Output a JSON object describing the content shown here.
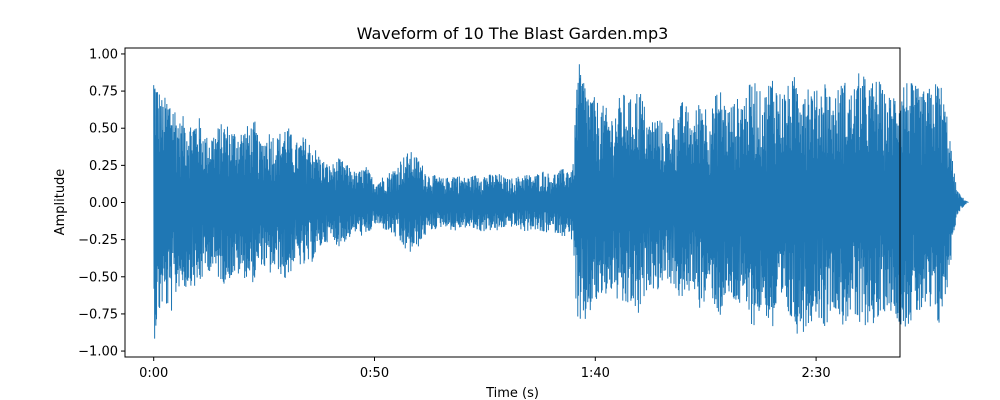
{
  "chart_data": {
    "type": "line",
    "title": "Waveform of 10 The Blast Garden.mp3",
    "xlabel": "Time (s)",
    "ylabel": "Amplitude",
    "xlim": [
      -6.5,
      169
    ],
    "ylim": [
      -1.04,
      1.04
    ],
    "xticks": [
      {
        "value": 0,
        "label": "0:00"
      },
      {
        "value": 50,
        "label": "0:50"
      },
      {
        "value": 100,
        "label": "1:40"
      },
      {
        "value": 150,
        "label": "2:30"
      }
    ],
    "yticks": [
      {
        "value": 1.0,
        "label": "1.00"
      },
      {
        "value": 0.75,
        "label": "0.75"
      },
      {
        "value": 0.5,
        "label": "0.50"
      },
      {
        "value": 0.25,
        "label": "0.25"
      },
      {
        "value": 0.0,
        "label": "0.00"
      },
      {
        "value": -0.25,
        "label": "−0.25"
      },
      {
        "value": -0.5,
        "label": "−0.50"
      },
      {
        "value": -0.75,
        "label": "−0.75"
      },
      {
        "value": -1.0,
        "label": "−1.00"
      }
    ],
    "grid": false,
    "series": [
      {
        "color": "#1f77b4",
        "envelope_upper": [
          [
            0,
            0.95
          ],
          [
            1,
            0.8
          ],
          [
            2,
            0.7
          ],
          [
            4,
            0.75
          ],
          [
            6,
            0.55
          ],
          [
            7,
            0.6
          ],
          [
            8,
            0.55
          ],
          [
            10,
            0.6
          ],
          [
            12,
            0.45
          ],
          [
            14,
            0.5
          ],
          [
            16,
            0.55
          ],
          [
            18,
            0.5
          ],
          [
            20,
            0.5
          ],
          [
            23,
            0.55
          ],
          [
            24,
            0.4
          ],
          [
            26,
            0.5
          ],
          [
            28,
            0.45
          ],
          [
            30,
            0.55
          ],
          [
            32,
            0.4
          ],
          [
            34,
            0.45
          ],
          [
            36,
            0.4
          ],
          [
            38,
            0.3
          ],
          [
            40,
            0.25
          ],
          [
            42,
            0.3
          ],
          [
            44,
            0.25
          ],
          [
            46,
            0.2
          ],
          [
            48,
            0.25
          ],
          [
            50,
            0.15
          ],
          [
            52,
            0.18
          ],
          [
            54,
            0.22
          ],
          [
            55,
            0.25
          ],
          [
            56,
            0.3
          ],
          [
            58,
            0.35
          ],
          [
            60,
            0.3
          ],
          [
            62,
            0.2
          ],
          [
            64,
            0.18
          ],
          [
            66,
            0.16
          ],
          [
            68,
            0.2
          ],
          [
            70,
            0.17
          ],
          [
            72,
            0.18
          ],
          [
            74,
            0.2
          ],
          [
            76,
            0.19
          ],
          [
            78,
            0.2
          ],
          [
            80,
            0.16
          ],
          [
            82,
            0.17
          ],
          [
            84,
            0.2
          ],
          [
            86,
            0.18
          ],
          [
            88,
            0.22
          ],
          [
            90,
            0.19
          ],
          [
            92,
            0.22
          ],
          [
            94,
            0.24
          ],
          [
            95,
            0.26
          ],
          [
            96,
            0.95
          ],
          [
            97,
            0.9
          ],
          [
            98,
            0.8
          ],
          [
            100,
            0.7
          ],
          [
            102,
            0.65
          ],
          [
            104,
            0.6
          ],
          [
            106,
            0.75
          ],
          [
            108,
            0.7
          ],
          [
            110,
            0.8
          ],
          [
            112,
            0.55
          ],
          [
            114,
            0.6
          ],
          [
            116,
            0.5
          ],
          [
            118,
            0.6
          ],
          [
            120,
            0.7
          ],
          [
            122,
            0.55
          ],
          [
            124,
            0.75
          ],
          [
            126,
            0.6
          ],
          [
            128,
            0.8
          ],
          [
            130,
            0.65
          ],
          [
            132,
            0.7
          ],
          [
            134,
            0.75
          ],
          [
            136,
            0.85
          ],
          [
            138,
            0.7
          ],
          [
            140,
            0.9
          ],
          [
            142,
            0.75
          ],
          [
            144,
            0.8
          ],
          [
            146,
            0.9
          ],
          [
            148,
            0.85
          ],
          [
            150,
            0.75
          ],
          [
            152,
            0.85
          ],
          [
            154,
            0.7
          ],
          [
            156,
            0.85
          ],
          [
            158,
            0.75
          ],
          [
            160,
            0.9
          ],
          [
            162,
            0.8
          ],
          [
            164,
            0.85
          ],
          [
            166,
            0.7
          ],
          [
            168,
            0.78
          ],
          [
            170,
            0.85
          ],
          [
            172,
            0.8
          ],
          [
            174,
            0.75
          ],
          [
            176,
            0.78
          ],
          [
            178,
            0.85
          ],
          [
            180,
            0.55
          ],
          [
            181,
            0.25
          ],
          [
            182,
            0.08
          ],
          [
            183,
            0.04
          ],
          [
            184,
            0.01
          ]
        ]
      }
    ]
  }
}
